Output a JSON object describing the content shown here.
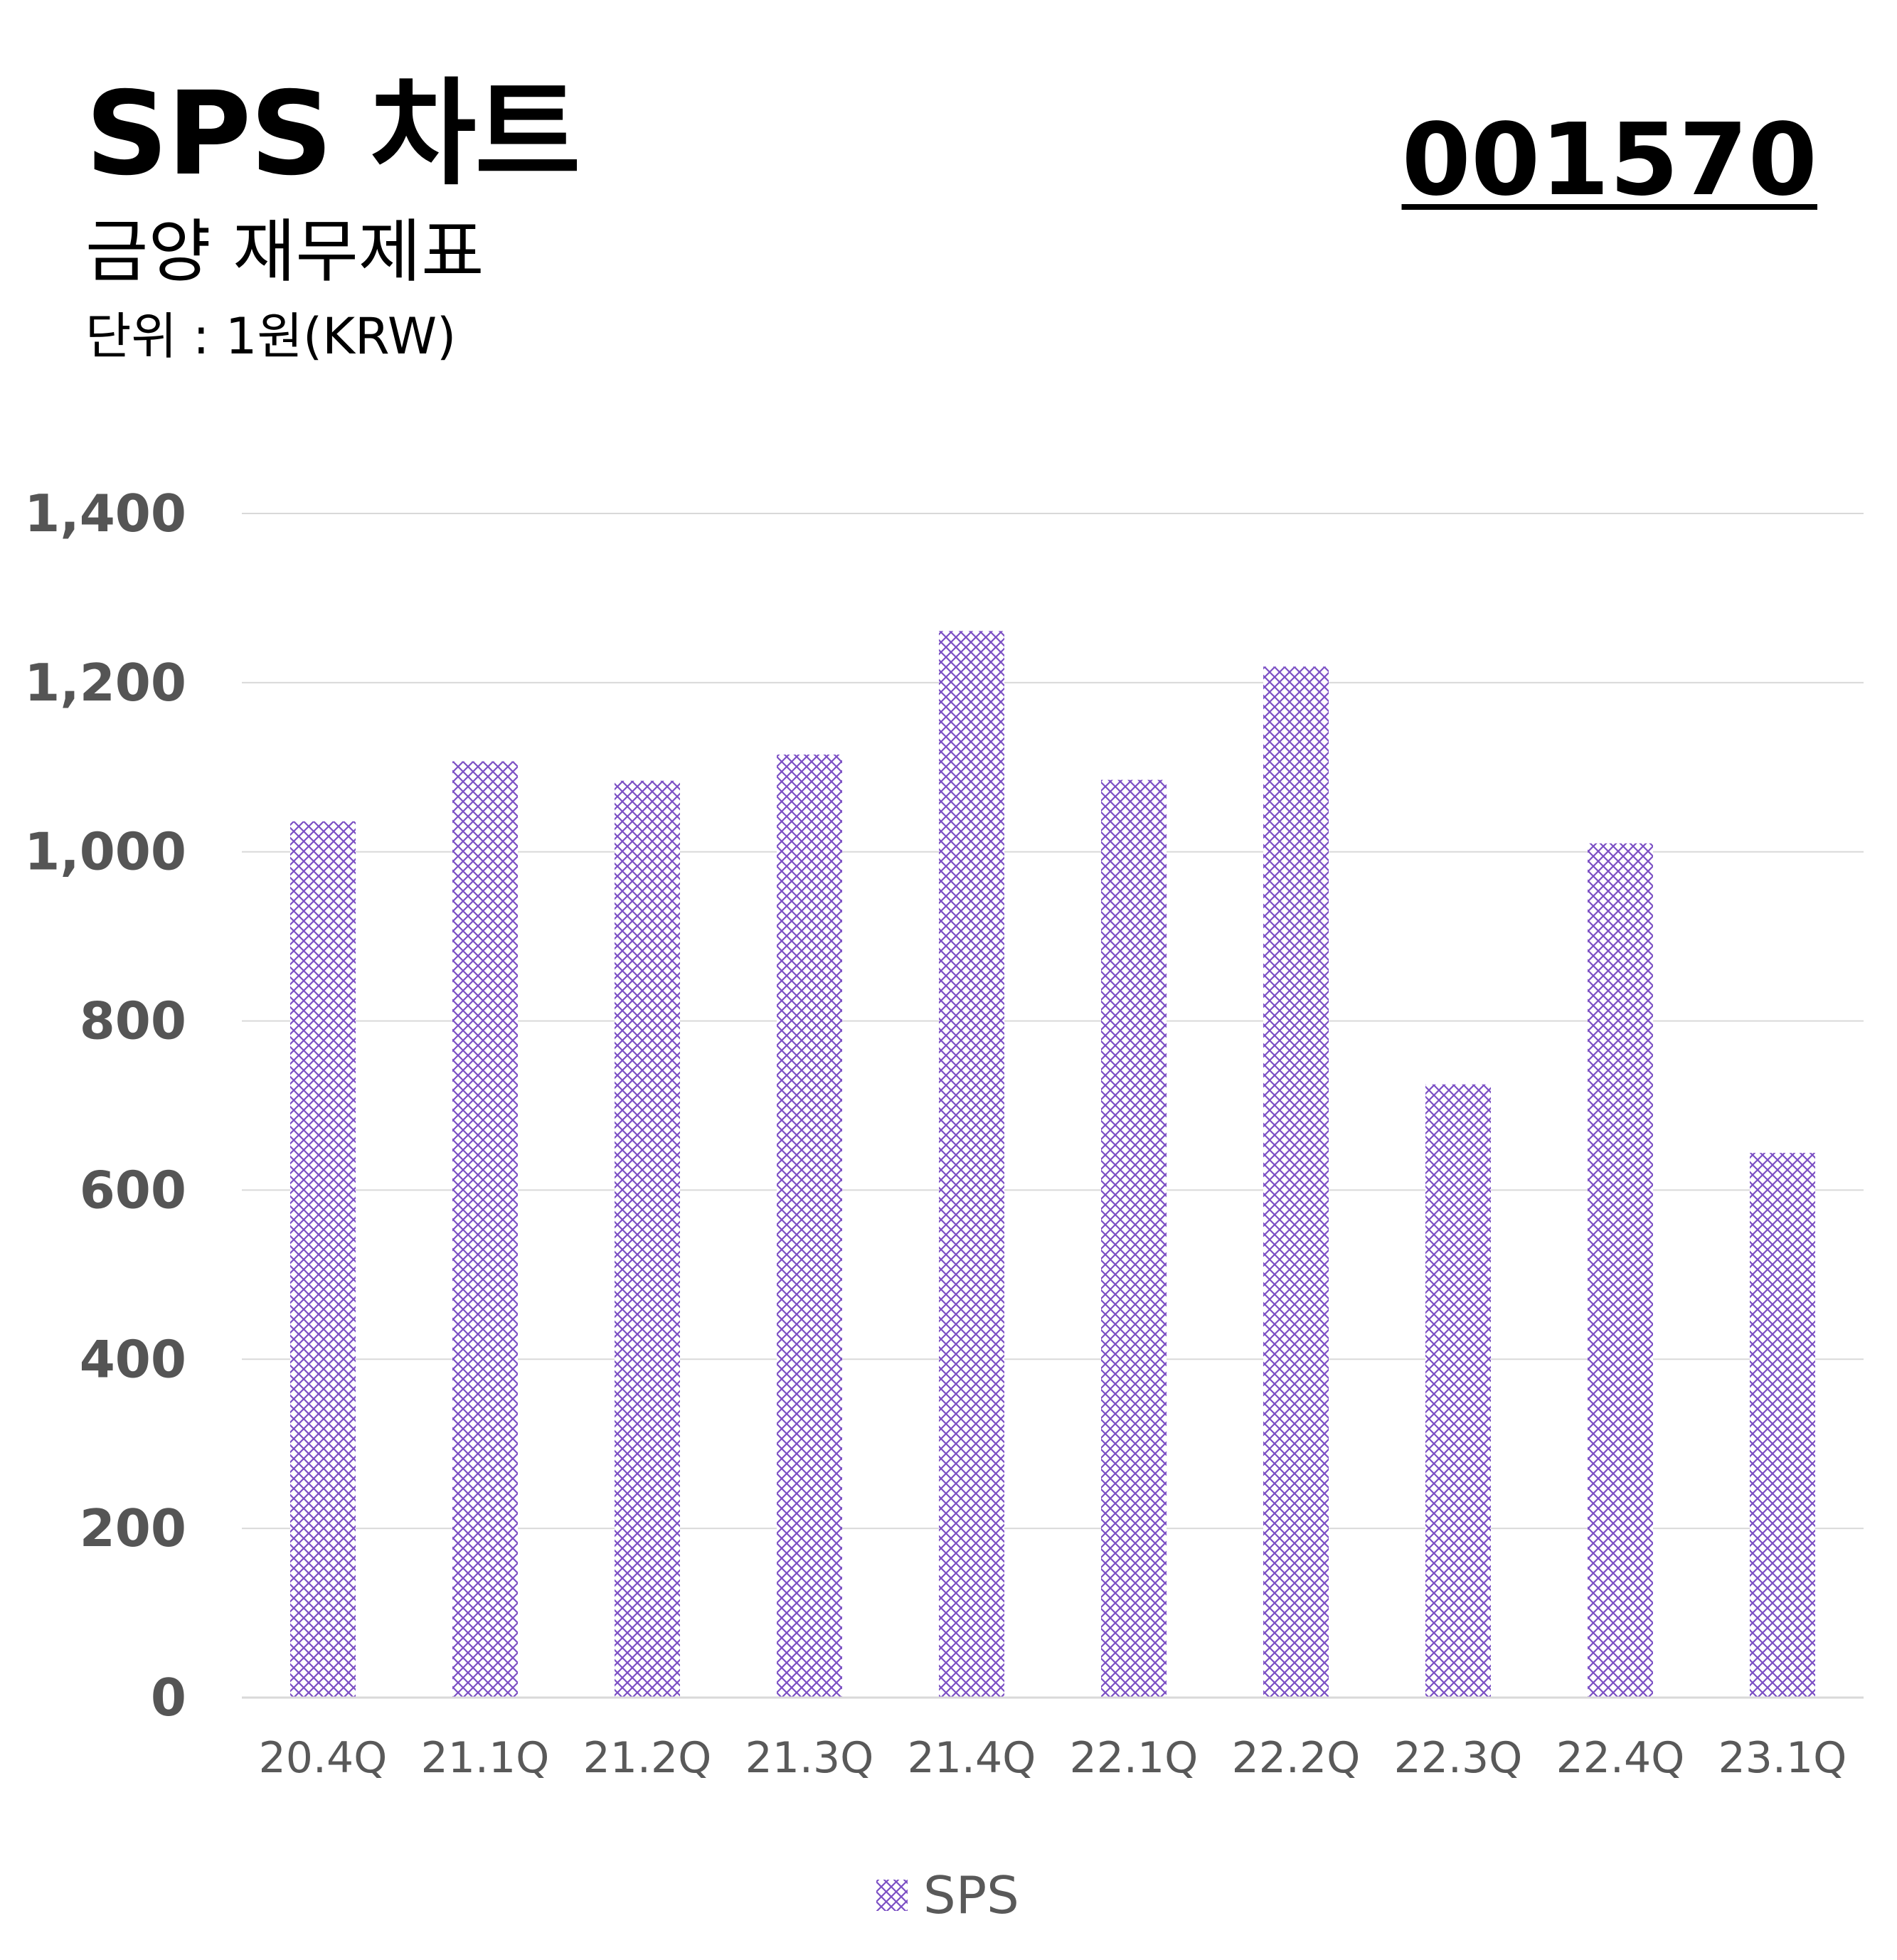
{
  "header": {
    "title": "SPS 차트",
    "subtitle": "금양 재무제표",
    "unit": "단위 : 1원(KRW)",
    "code": "001570"
  },
  "colors": {
    "bar_pattern": "#7b4fc4",
    "bar_fill": "#ffffff",
    "gridline": "#d9d9d9",
    "axis_text": "#555555"
  },
  "chart_data": {
    "type": "bar",
    "categories": [
      "20.4Q",
      "21.1Q",
      "21.2Q",
      "21.3Q",
      "21.4Q",
      "22.1Q",
      "22.2Q",
      "22.3Q",
      "22.4Q",
      "23.1Q"
    ],
    "series": [
      {
        "name": "SPS",
        "values": [
          1036,
          1107,
          1084,
          1115,
          1261,
          1085,
          1219,
          725,
          1010,
          644
        ]
      }
    ],
    "ylim": [
      0,
      1400
    ],
    "yticks": [
      0,
      200,
      400,
      600,
      800,
      1000,
      1200,
      1400
    ],
    "ytick_labels": [
      "0",
      "200",
      "400",
      "600",
      "800",
      "1,000",
      "1,200",
      "1,400"
    ],
    "grid": true,
    "legend": "bottom",
    "pattern": "diagonal-crosshatch"
  }
}
